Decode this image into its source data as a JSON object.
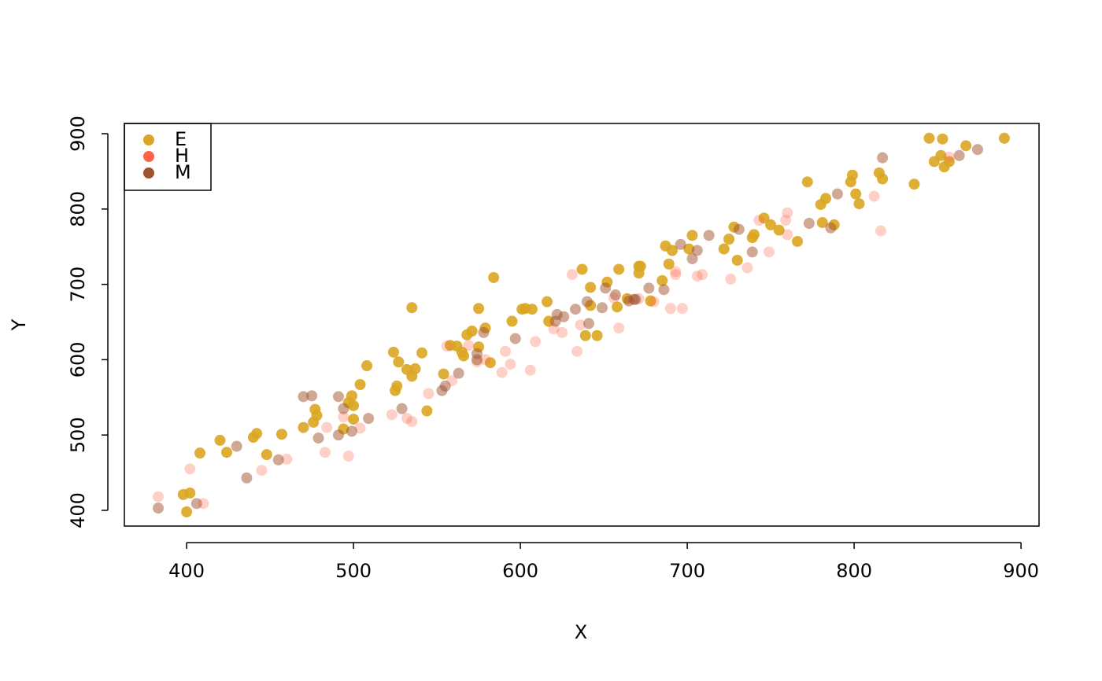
{
  "chart_data": {
    "type": "scatter",
    "x_label": "X",
    "y_label": "Y",
    "xlim": [
      362.7,
      910.8
    ],
    "ylim": [
      379.1,
      913.6
    ],
    "xticks": [
      400,
      500,
      600,
      700,
      800,
      900
    ],
    "yticks": [
      400,
      500,
      600,
      700,
      800,
      900
    ],
    "legend": "top-left",
    "series": [
      {
        "name": "E",
        "color": "#DAA520",
        "alpha": 0.9,
        "x": [
          400,
          398,
          402,
          408,
          420,
          424,
          440,
          442,
          448,
          457,
          470,
          476,
          477,
          478,
          494,
          497,
          499,
          500,
          500,
          504,
          508,
          524,
          525,
          526,
          527,
          532,
          535,
          537,
          535,
          541,
          544,
          554,
          558,
          562,
          565,
          566,
          568,
          571,
          575,
          575,
          579,
          582,
          584,
          595,
          601,
          603,
          607,
          616,
          617,
          637,
          639,
          642,
          642,
          646,
          652,
          658,
          659,
          664,
          671,
          671,
          672,
          678,
          685,
          687,
          689,
          691,
          703,
          701,
          722,
          725,
          728,
          730,
          739,
          740,
          746,
          750,
          755,
          766,
          772,
          780,
          783,
          781,
          788,
          798,
          799,
          801,
          803,
          815,
          817,
          836,
          845,
          848,
          852,
          853,
          854,
          857,
          867,
          890
        ],
        "y": [
          398,
          421,
          423,
          476,
          493,
          477,
          497,
          502,
          474,
          501,
          510,
          517,
          534,
          526,
          508,
          543,
          552,
          539,
          521,
          567,
          592,
          610,
          559,
          565,
          597,
          587,
          578,
          588,
          669,
          609,
          532,
          581,
          619,
          618,
          610,
          605,
          633,
          638,
          668,
          617,
          642,
          596,
          709,
          651,
          667,
          668,
          667,
          677,
          651,
          720,
          632,
          672,
          696,
          632,
          703,
          670,
          720,
          681,
          724,
          715,
          724,
          678,
          705,
          751,
          727,
          745,
          765,
          747,
          747,
          760,
          776,
          732,
          762,
          766,
          788,
          779,
          772,
          757,
          836,
          806,
          814,
          782,
          779,
          836,
          845,
          820,
          807,
          848,
          840,
          833,
          894,
          863,
          871,
          893,
          856,
          863,
          884,
          894
        ]
      },
      {
        "name": "H",
        "color": "#FF6347",
        "alpha": 0.3,
        "x": [
          383,
          402,
          410,
          445,
          460,
          483,
          484,
          494,
          497,
          504,
          523,
          532,
          535,
          545,
          556,
          559,
          569,
          574,
          579,
          589,
          591,
          594,
          606,
          609,
          620,
          625,
          631,
          634,
          636,
          659,
          656,
          671,
          680,
          690,
          693,
          693,
          697,
          706,
          709,
          726,
          736,
          743,
          749,
          759,
          760,
          760,
          812,
          816,
          857
        ],
        "y": [
          418,
          455,
          409,
          453,
          468,
          477,
          510,
          524,
          472,
          509,
          527,
          522,
          518,
          555,
          618,
          572,
          619,
          597,
          600,
          583,
          611,
          594,
          586,
          624,
          641,
          636,
          713,
          611,
          646,
          642,
          682,
          681,
          677,
          668,
          717,
          713,
          668,
          711,
          713,
          707,
          722,
          785,
          743,
          785,
          795,
          766,
          817,
          771,
          869
        ]
      },
      {
        "name": "M",
        "color": "#A0522D",
        "alpha": 0.5,
        "x": [
          383,
          406,
          430,
          436,
          455,
          470,
          475,
          479,
          491,
          491,
          494,
          499,
          509,
          529,
          555,
          553,
          563,
          574,
          574,
          578,
          597,
          621,
          622,
          626,
          633,
          640,
          641,
          649,
          651,
          657,
          665,
          668,
          669,
          677,
          686,
          696,
          703,
          706,
          713,
          731,
          739,
          773,
          786,
          790,
          817,
          863,
          874
        ],
        "y": [
          403,
          409,
          485,
          443,
          467,
          551,
          552,
          496,
          500,
          551,
          535,
          505,
          522,
          535,
          565,
          559,
          582,
          608,
          600,
          636,
          628,
          651,
          660,
          657,
          667,
          677,
          648,
          669,
          695,
          686,
          678,
          680,
          680,
          695,
          693,
          753,
          734,
          745,
          765,
          773,
          743,
          781,
          775,
          820,
          868,
          871,
          879
        ]
      }
    ]
  }
}
